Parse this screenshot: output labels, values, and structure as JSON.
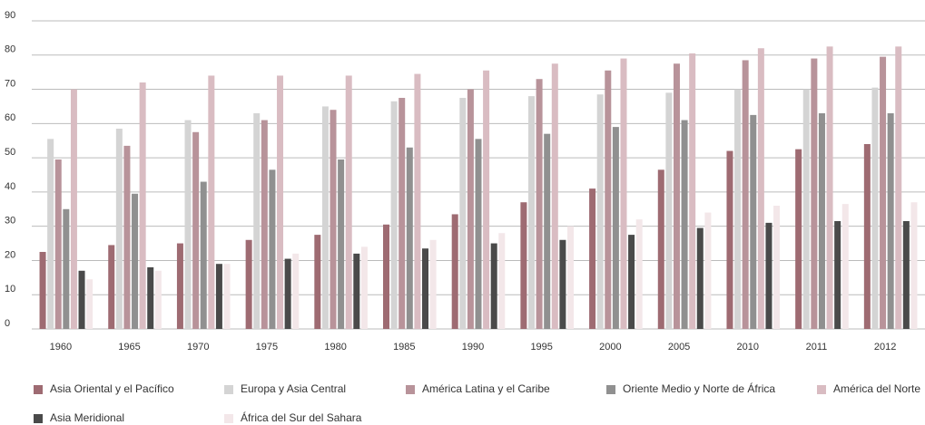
{
  "chart_data": {
    "type": "bar",
    "categories": [
      "1960",
      "1965",
      "1970",
      "1975",
      "1980",
      "1985",
      "1990",
      "1995",
      "2000",
      "2005",
      "2010",
      "2011",
      "2012"
    ],
    "series": [
      {
        "name": "Asia Oriental y el Pacífico",
        "color": "#9e6b72",
        "values": [
          22.5,
          24.5,
          25,
          26,
          27.5,
          30.5,
          33.5,
          37,
          41,
          46.5,
          52,
          52.5,
          54
        ]
      },
      {
        "name": "Europa y Asia Central",
        "color": "#d4d4d4",
        "values": [
          55.5,
          58.5,
          61,
          63,
          65,
          66.5,
          67.5,
          68,
          68.5,
          69,
          70,
          70,
          70.5
        ]
      },
      {
        "name": "América Latina y el Caribe",
        "color": "#b8939a",
        "values": [
          49.5,
          53.5,
          57.5,
          61,
          64,
          67.5,
          70,
          73,
          75.5,
          77.5,
          78.5,
          79,
          79.5
        ]
      },
      {
        "name": "Oriente Medio y Norte de África",
        "color": "#909090",
        "values": [
          35,
          39.5,
          43,
          46.5,
          49.5,
          53,
          55.5,
          57,
          59,
          61,
          62.5,
          63,
          63
        ]
      },
      {
        "name": "América del Norte",
        "color": "#d9bcc2",
        "values": [
          70,
          72,
          74,
          74,
          74,
          74.5,
          75.5,
          77.5,
          79,
          80.5,
          82,
          82.5,
          82.5
        ]
      },
      {
        "name": "Asia Meridional",
        "color": "#4a4a4a",
        "values": [
          17,
          18,
          19,
          20.5,
          22,
          23.5,
          25,
          26,
          27.5,
          29.5,
          31,
          31.5,
          31.5
        ]
      },
      {
        "name": "África del Sur del Sahara",
        "color": "#f3e7e9",
        "values": [
          14.5,
          17,
          19,
          22,
          24,
          26,
          28,
          30,
          32,
          34,
          36,
          36.5,
          37
        ]
      }
    ],
    "ylim": [
      0,
      90
    ],
    "yticks": [
      0,
      10,
      20,
      30,
      40,
      50,
      60,
      70,
      80,
      90
    ],
    "grid": true,
    "legend": "bottom"
  }
}
